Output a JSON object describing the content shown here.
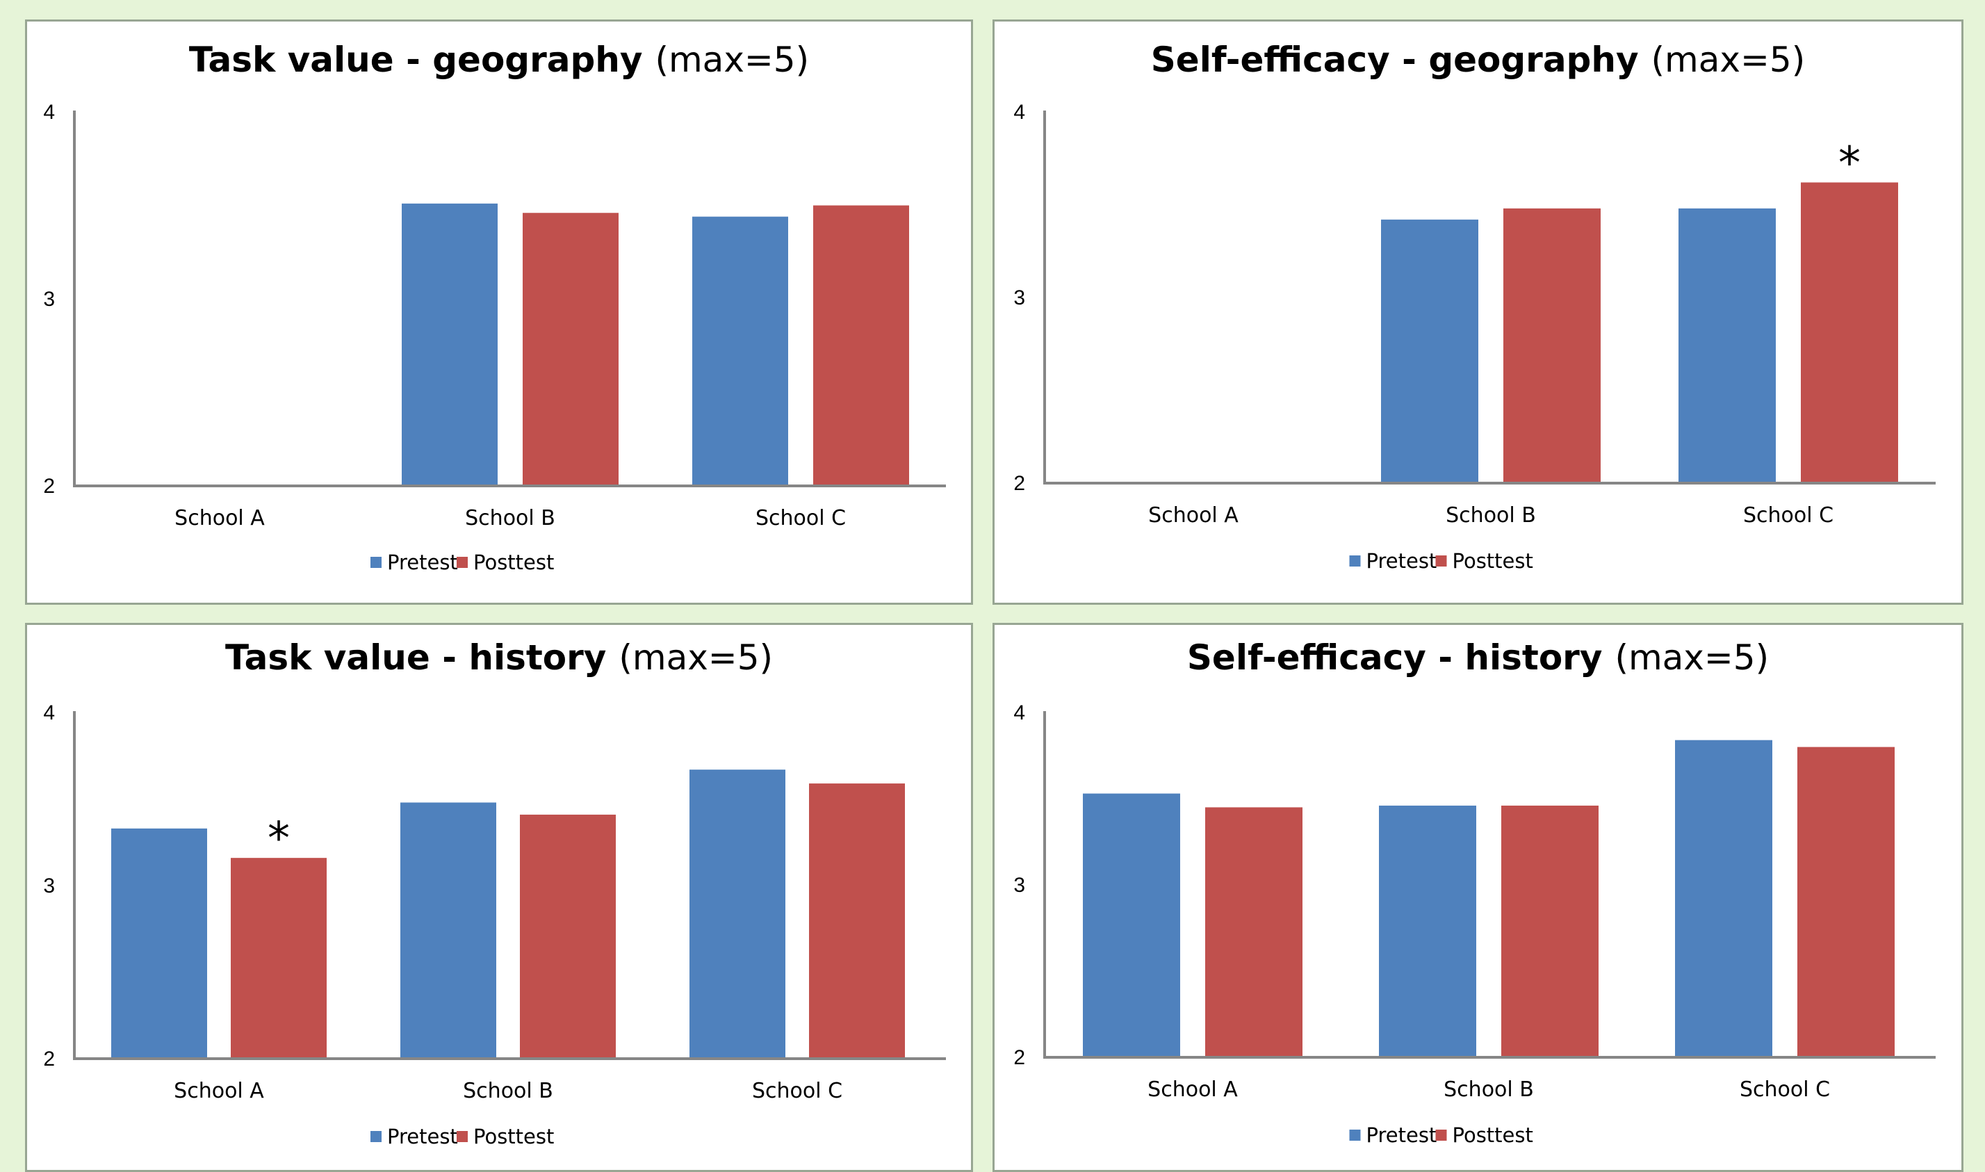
{
  "colors": {
    "pretest": "#4f81bd",
    "posttest": "#c0504d",
    "axis": "#868686",
    "background": "#e6f4d8",
    "panel_border": "#98a693"
  },
  "legend": {
    "pretest_label": "Pretest",
    "posttest_label": "Posttest",
    "position": "bottom"
  },
  "chart_data": [
    {
      "type": "bar",
      "title": "Task value - geography",
      "title_suffix": "(max=5)",
      "xlabel": "",
      "ylabel": "",
      "categories": [
        "School A",
        "School B",
        "School C"
      ],
      "series": [
        {
          "name": "Pretest",
          "values": [
            null,
            3.51,
            3.44
          ]
        },
        {
          "name": "Posttest",
          "values": [
            null,
            3.46,
            3.5
          ]
        }
      ],
      "ylim": [
        2,
        4
      ],
      "yticks": [
        "2",
        "3",
        "4"
      ],
      "annotations": [],
      "grid": false
    },
    {
      "type": "bar",
      "title": "Self-efficacy - geography",
      "title_suffix": "(max=5)",
      "xlabel": "",
      "ylabel": "",
      "categories": [
        "School A",
        "School B",
        "School C"
      ],
      "series": [
        {
          "name": "Pretest",
          "values": [
            null,
            3.42,
            3.48
          ]
        },
        {
          "name": "Posttest",
          "values": [
            null,
            3.48,
            3.62
          ]
        }
      ],
      "ylim": [
        2,
        4
      ],
      "yticks": [
        "2",
        "3",
        "4"
      ],
      "annotations": [
        {
          "category_index": 2,
          "series_index": 1,
          "text": "*"
        }
      ],
      "grid": false
    },
    {
      "type": "bar",
      "title": "Task value - history",
      "title_suffix": "(max=5)",
      "xlabel": "",
      "ylabel": "",
      "categories": [
        "School A",
        "School B",
        "School C"
      ],
      "series": [
        {
          "name": "Pretest",
          "values": [
            3.33,
            3.48,
            3.67
          ]
        },
        {
          "name": "Posttest",
          "values": [
            3.16,
            3.41,
            3.59
          ]
        }
      ],
      "ylim": [
        2,
        4
      ],
      "yticks": [
        "2",
        "3",
        "4"
      ],
      "annotations": [
        {
          "category_index": 0,
          "series_index": 1,
          "text": "*"
        }
      ],
      "grid": false
    },
    {
      "type": "bar",
      "title": "Self-efficacy - history",
      "title_suffix": "(max=5)",
      "xlabel": "",
      "ylabel": "",
      "categories": [
        "School A",
        "School B",
        "School C"
      ],
      "series": [
        {
          "name": "Pretest",
          "values": [
            3.53,
            3.46,
            3.84
          ]
        },
        {
          "name": "Posttest",
          "values": [
            3.45,
            3.46,
            3.8
          ]
        }
      ],
      "ylim": [
        2,
        4
      ],
      "yticks": [
        "2",
        "3",
        "4"
      ],
      "annotations": [],
      "grid": false
    }
  ]
}
